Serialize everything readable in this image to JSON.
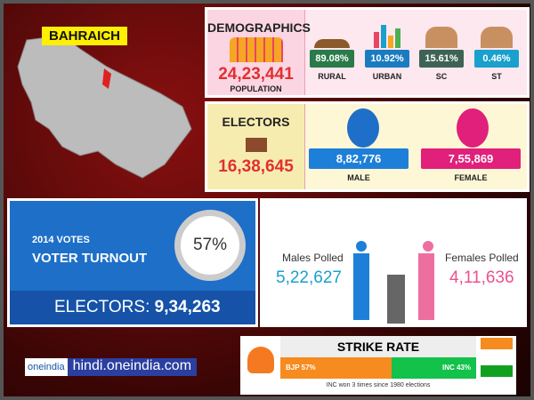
{
  "district": "BAHRAICH",
  "demographics": {
    "title": "DEMOGRAPHICS",
    "population": "24,23,441",
    "population_label": "POPULATION",
    "stats": [
      {
        "value": "89.08%",
        "label": "RURAL",
        "color": "#2a7a4a"
      },
      {
        "value": "10.92%",
        "label": "URBAN",
        "color": "#1a7cc0"
      },
      {
        "value": "15.61%",
        "label": "SC",
        "color": "#3d6355"
      },
      {
        "value": "0.46%",
        "label": "ST",
        "color": "#1aa0cc"
      }
    ]
  },
  "electors": {
    "title": "ELECTORS",
    "total": "16,38,645",
    "male": "8,82,776",
    "male_label": "MALE",
    "female": "7,55,869",
    "female_label": "FEMALE"
  },
  "turnout": {
    "year_label": "2014 VOTES",
    "title": "VOTER TURNOUT",
    "percent": "57%",
    "electors_label": "ELECTORS:",
    "electors_value": "9,34,263"
  },
  "polled": {
    "males_label": "Males Polled",
    "males_value": "5,22,627",
    "females_label": "Females Polled",
    "females_value": "4,11,636"
  },
  "strike_rate": {
    "title": "STRIKE RATE",
    "bjp": "BJP 57%",
    "bjp_share": 57,
    "inc": "INC 43%",
    "inc_share": 43,
    "note": "INC won 3 times since 1980 elections"
  },
  "branding": {
    "logo": "oneindia",
    "site": "hindi.oneindia.com"
  }
}
